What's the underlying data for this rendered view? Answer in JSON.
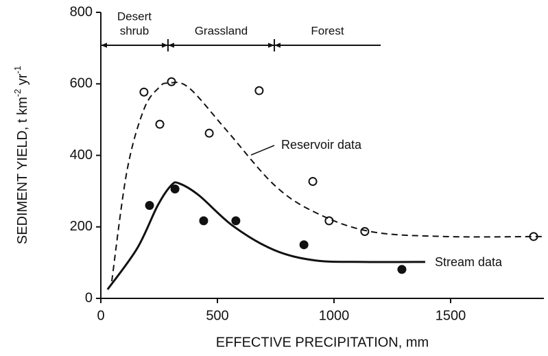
{
  "chart_data": {
    "type": "scatter",
    "xlabel": "EFFECTIVE PRECIPITATION, mm",
    "ylabel": [
      "SEDIMENT YIELD, t km",
      "-2",
      " yr",
      "-1"
    ],
    "xlim": [
      0,
      1900
    ],
    "ylim": [
      0,
      800
    ],
    "xticks": [
      0,
      500,
      1000,
      1500
    ],
    "yticks": [
      0,
      200,
      400,
      600,
      800
    ],
    "grid": false,
    "zones": [
      {
        "label": [
          "Desert",
          "shrub"
        ],
        "start": 0,
        "end": 288
      },
      {
        "label": [
          "Grassland"
        ],
        "start": 288,
        "end": 744
      },
      {
        "label": [
          "Forest"
        ],
        "start": 744,
        "end": 1200
      }
    ],
    "series": [
      {
        "type": "scatter",
        "fill": "open",
        "color": "#111111",
        "x": [
          185,
          253,
          303,
          465,
          679,
          909,
          979,
          1132,
          1856
        ],
        "values": [
          577,
          487,
          606,
          462,
          581,
          327,
          217,
          187,
          173
        ]
      },
      {
        "type": "scatter",
        "fill": "filled",
        "color": "#111111",
        "x": [
          209,
          318,
          441,
          579,
          871,
          1291
        ],
        "values": [
          260,
          306,
          217,
          217,
          150,
          81
        ]
      },
      {
        "type": "line",
        "name": "Reservoir data",
        "dashed": true,
        "color": "#111111",
        "x": [
          47,
          112,
          185,
          250,
          288,
          376,
          538,
          744,
          921,
          1156,
          1479,
          1900
        ],
        "values": [
          48,
          356,
          529,
          590,
          602,
          590,
          471,
          317,
          240,
          187,
          173,
          173
        ]
      },
      {
        "type": "line",
        "name": "Stream data",
        "dashed": false,
        "color": "#111111",
        "x": [
          29,
          156,
          244,
          303,
          338,
          421,
          568,
          744,
          921,
          1126,
          1391
        ],
        "values": [
          25,
          140,
          260,
          317,
          321,
          288,
          202,
          135,
          106,
          102,
          102
        ]
      }
    ]
  }
}
